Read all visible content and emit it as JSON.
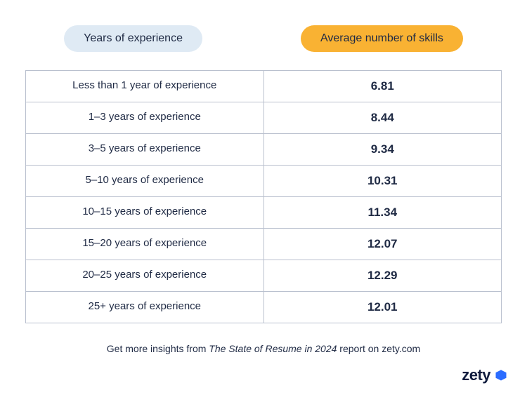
{
  "colors": {
    "background": "#ffffff",
    "pill_left_bg": "#dfeaf4",
    "pill_left_text": "#1f2a44",
    "pill_right_bg": "#f9b233",
    "pill_right_text": "#1f2a44",
    "border": "#b9c0ce",
    "cell_text": "#1f2a44",
    "caption_text": "#1f2a44",
    "logo_text": "#0f1b3d",
    "logo_icon": "#2b6cff"
  },
  "headers": {
    "left": "Years of experience",
    "right": "Average number of skills"
  },
  "table": {
    "type": "table",
    "columns": [
      "Years of experience",
      "Average number of skills"
    ],
    "rows": [
      {
        "label": "Less than 1 year of experience",
        "value": "6.81"
      },
      {
        "label": "1–3 years of experience",
        "value": "8.44"
      },
      {
        "label": "3–5 years of experience",
        "value": "9.34"
      },
      {
        "label": "5–10 years of experience",
        "value": "10.31"
      },
      {
        "label": "10–15 years of experience",
        "value": "11.34"
      },
      {
        "label": "15–20 years of experience",
        "value": "12.07"
      },
      {
        "label": "20–25 years of experience",
        "value": "12.29"
      },
      {
        "label": "25+ years of experience",
        "value": "12.01"
      }
    ],
    "label_fontsize": 15,
    "value_fontsize": 17,
    "value_fontweight": 700,
    "row_padding_y": 12
  },
  "caption": {
    "prefix": "Get more insights from ",
    "italic": "The State of Resume in 2024",
    "suffix": " report on zety.com"
  },
  "logo": {
    "text": "zety"
  }
}
